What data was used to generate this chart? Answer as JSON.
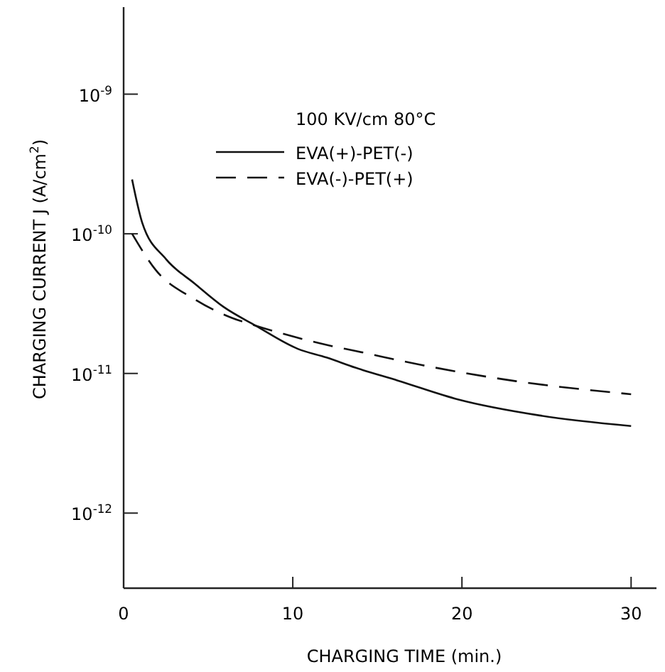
{
  "chart_data": {
    "type": "line",
    "xlabel": "CHARGING TIME (min.)",
    "ylabel": "CHARGING CURRENT  J (A/cm$^{2}$)",
    "annotations": [
      "100 KV/cm   80°C"
    ],
    "log": "y",
    "grid": false,
    "legend": "top",
    "marker": "none",
    "xlim": [
      0,
      31.5
    ],
    "xticks": [
      0,
      10,
      20,
      30
    ],
    "ylim": [
      2.9e-13,
      4.2e-09
    ],
    "yticks": [
      {
        "value": 1e-12,
        "label": "10$^{-12}$"
      },
      {
        "value": 1e-11,
        "label": "10$^{-11}$"
      },
      {
        "value": 1e-10,
        "label": "10$^{-10}$"
      },
      {
        "value": 1e-09,
        "label": "10$^{-9}$"
      }
    ],
    "series": [
      {
        "name": "EVA(+)-PET(-)",
        "color": "#111111",
        "line_style": "solid",
        "x": [
          0.5,
          1.1,
          2.5,
          4.2,
          5.9,
          7.8,
          10.3,
          12,
          13.7,
          16.2,
          19.8,
          24.6,
          30
        ],
        "values": [
          2.45e-10,
          1.2e-10,
          6.6e-11,
          4.4e-11,
          3e-11,
          2.2e-11,
          1.5e-11,
          1.3e-11,
          1.1e-11,
          8.9e-12,
          6.5e-12,
          5e-12,
          4.2e-12
        ]
      },
      {
        "name": "EVA(-)-PET(+)",
        "color": "#111111",
        "line_style": "dashed",
        "x": [
          0.5,
          1.9,
          4.2,
          6.4,
          7.8,
          10.3,
          12,
          13.7,
          17.6,
          23.2,
          30
        ],
        "values": [
          1e-10,
          5.5e-11,
          3.4e-11,
          2.5e-11,
          2.2e-11,
          1.8e-11,
          1.6e-11,
          1.45e-11,
          1.15e-11,
          8.8e-12,
          7.1e-12
        ]
      }
    ]
  }
}
